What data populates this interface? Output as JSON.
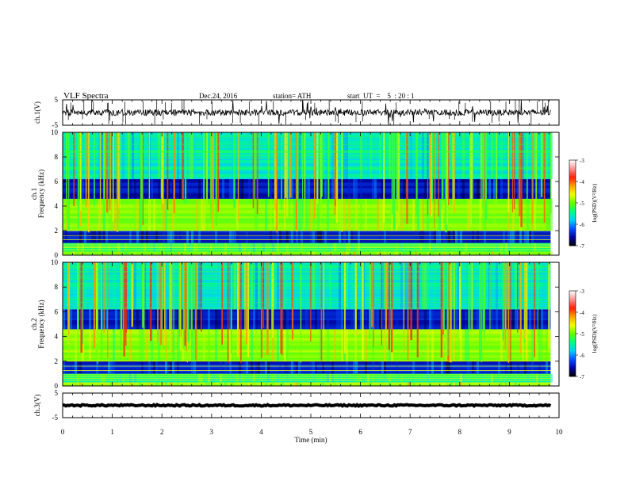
{
  "header": {
    "title": "VLF  Spectra",
    "date": "Dec.24, 2016",
    "station": "station= ATH",
    "start": "start  UT  =    5  : 20 : 1"
  },
  "colors": {
    "spectrogram_background": "#1010c8",
    "waveform": "#000000",
    "colorbar": [
      "#000000",
      "#0000a0",
      "#0050ff",
      "#00d0ff",
      "#00ff80",
      "#60ff00",
      "#f0ff00",
      "#ffa000",
      "#ff2000",
      "#ff9090",
      "#ffffff"
    ]
  },
  "chart_data": {
    "type": "heatmap",
    "xlabel": "Time  (min)",
    "xlim": [
      0,
      10
    ],
    "xticks": [
      "0",
      "1",
      "2",
      "3",
      "4",
      "5",
      "6",
      "7",
      "8",
      "9",
      "10"
    ],
    "panels": {
      "ch1_wave": {
        "ylabel": "ch.1(V)",
        "ylim": [
          -5,
          5
        ],
        "yticks": [
          "5",
          "-5"
        ]
      },
      "ch1_spec": {
        "ylabel": "ch.1\nFrequency  (kHz)",
        "ylim": [
          0,
          10
        ],
        "yticks": [
          "0",
          "2",
          "4",
          "6",
          "8",
          "10"
        ],
        "colorbar": {
          "label": "log(PSD)(V²/Hz)",
          "range": [
            -7,
            -3
          ],
          "ticks": [
            "-3",
            "-4",
            "-5",
            "-6",
            "-7"
          ]
        }
      },
      "ch2_spec": {
        "ylabel": "ch.2\nFrequency  (kHz)",
        "ylim": [
          0,
          10
        ],
        "yticks": [
          "0",
          "2",
          "4",
          "6",
          "8",
          "10"
        ],
        "colorbar": {
          "label": "log(PSD)(V²/Hz)",
          "range": [
            -7,
            -3
          ],
          "ticks": [
            "-3",
            "-4",
            "-5",
            "-6",
            "-7"
          ]
        }
      },
      "ch3_wave": {
        "ylabel": "ch.3(V)",
        "ylim": [
          -5,
          5
        ],
        "yticks": [
          "5",
          "-5"
        ]
      }
    },
    "data_end_min": 9.83,
    "frequency_bands": [
      {
        "from_khz": 0,
        "to_khz": 0.3,
        "level": -4.8
      },
      {
        "from_khz": 0.3,
        "to_khz": 1.0,
        "level": -5.4
      },
      {
        "from_khz": 1.0,
        "to_khz": 2.0,
        "level": -6.4
      },
      {
        "from_khz": 2.0,
        "to_khz": 4.6,
        "level": -4.9
      },
      {
        "from_khz": 4.6,
        "to_khz": 6.2,
        "level": -6.5
      },
      {
        "from_khz": 6.2,
        "to_khz": 10,
        "level": -5.6
      }
    ]
  }
}
